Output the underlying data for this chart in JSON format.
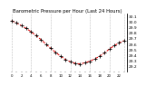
{
  "title": "Barometric Pressure per Hour (Last 24 Hours)",
  "hours": [
    0,
    1,
    2,
    3,
    4,
    5,
    6,
    7,
    8,
    9,
    10,
    11,
    12,
    13,
    14,
    15,
    16,
    17,
    18,
    19,
    20,
    21,
    22,
    23
  ],
  "pressure": [
    30.02,
    29.98,
    29.93,
    29.88,
    29.82,
    29.75,
    29.68,
    29.6,
    29.52,
    29.45,
    29.38,
    29.32,
    29.28,
    29.25,
    29.24,
    29.26,
    29.29,
    29.33,
    29.38,
    29.44,
    29.51,
    29.57,
    29.62,
    29.66
  ],
  "line_color": "#dd0000",
  "marker_color": "#000000",
  "bg_color": "#ffffff",
  "grid_color": "#bbbbbb",
  "ylim": [
    29.1,
    30.15
  ],
  "ytick_values": [
    29.2,
    29.3,
    29.4,
    29.5,
    29.6,
    29.7,
    29.8,
    29.9,
    30.0,
    30.1
  ],
  "ylabel_fontsize": 3.2,
  "title_fontsize": 3.8,
  "xlabel_fontsize": 2.8,
  "grid_positions": [
    0,
    4,
    8,
    12,
    16,
    20,
    23
  ]
}
